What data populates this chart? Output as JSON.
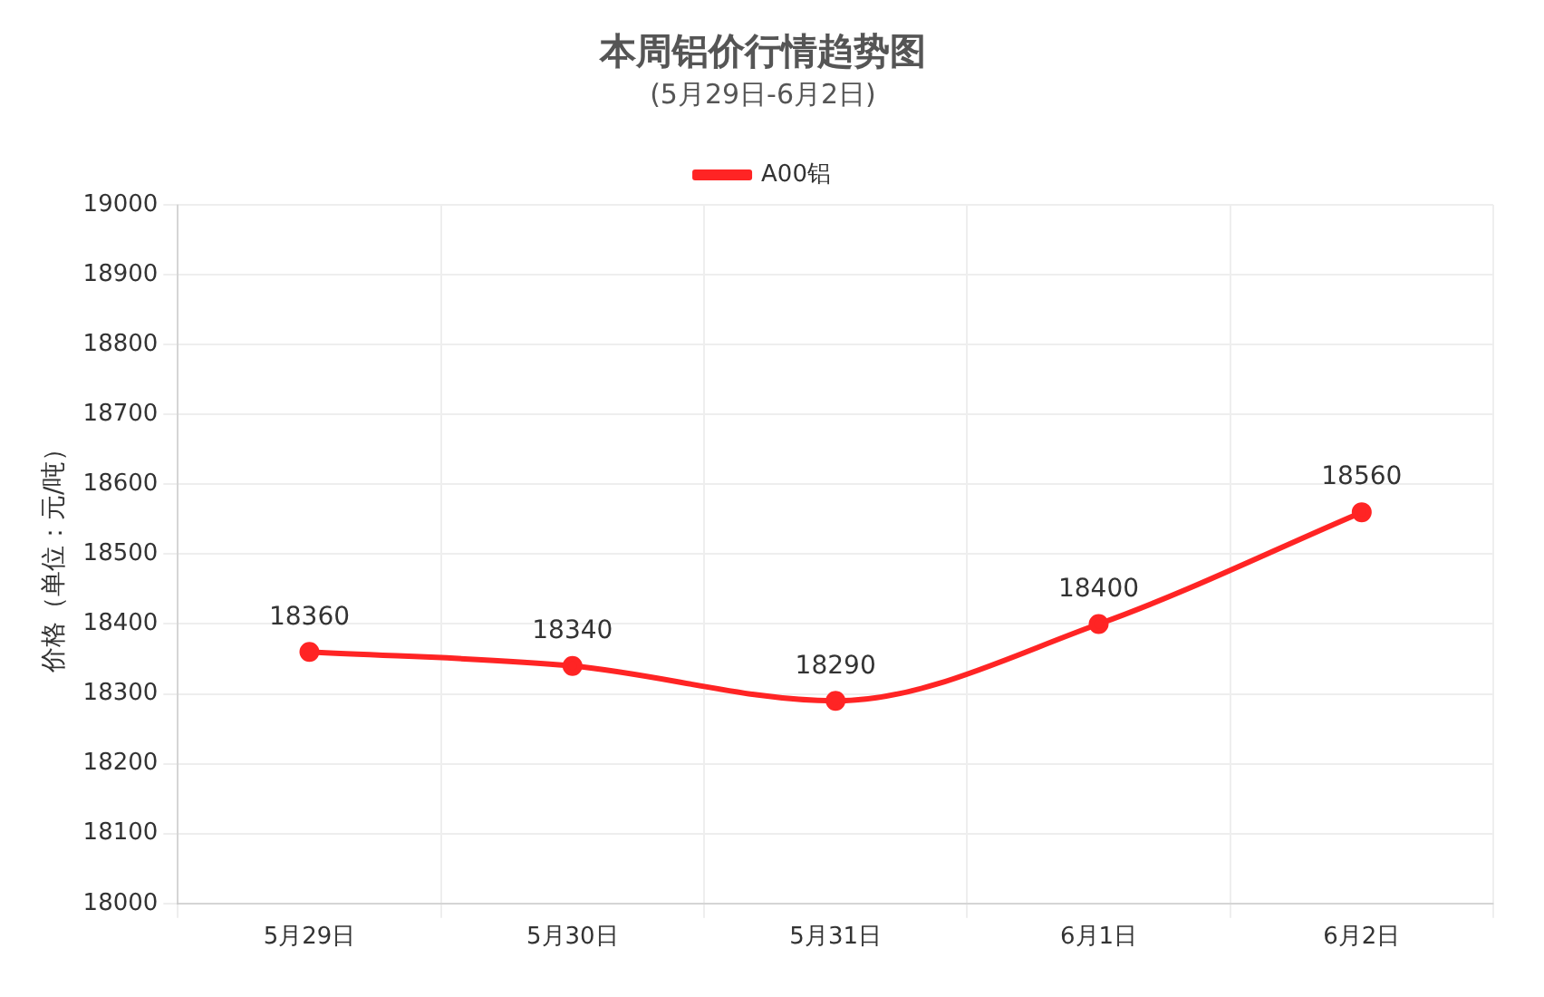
{
  "chart_data": {
    "type": "line",
    "title": "本周铝价行情趋势图",
    "subtitle": "(5月29日-6月2日)",
    "ylabel": "价格（单位：元/吨）",
    "categories": [
      "5月29日",
      "5月30日",
      "5月31日",
      "6月1日",
      "6月2日"
    ],
    "series": [
      {
        "name": "A00铝",
        "color": "#ff2424",
        "values": [
          18360,
          18340,
          18290,
          18400,
          18560
        ]
      }
    ],
    "ylim": [
      18000,
      19000
    ],
    "yticks": [
      18000,
      18100,
      18200,
      18300,
      18400,
      18500,
      18600,
      18700,
      18800,
      18900,
      19000
    ],
    "grid": true,
    "legend": "top",
    "marker": "circle",
    "data_labels": true
  }
}
